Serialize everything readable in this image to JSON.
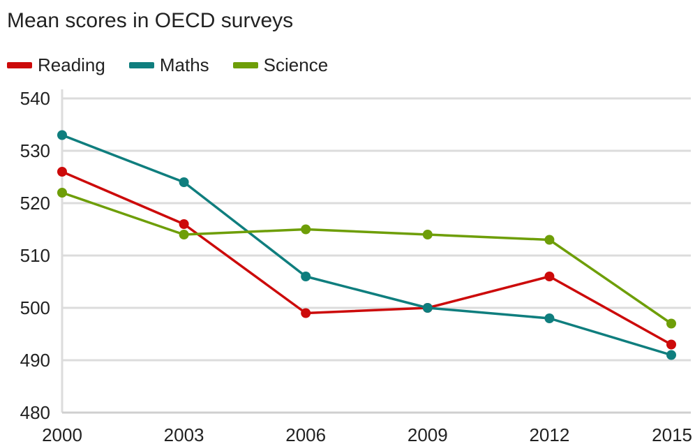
{
  "chart_data": {
    "type": "line",
    "title": "Mean scores in OECD surveys",
    "xlabel": "",
    "ylabel": "",
    "x": [
      "2000",
      "2003",
      "2006",
      "2009",
      "2012",
      "2015"
    ],
    "ylim": [
      480,
      540
    ],
    "yticks": [
      480,
      490,
      500,
      510,
      520,
      530,
      540
    ],
    "grid": "horizontal",
    "legend_position": "top-left",
    "series": [
      {
        "name": "Reading",
        "color": "#cc0a0a",
        "values": [
          526,
          516,
          499,
          500,
          506,
          493
        ]
      },
      {
        "name": "Maths",
        "color": "#0f7e7e",
        "values": [
          533,
          524,
          506,
          500,
          498,
          491
        ]
      },
      {
        "name": "Science",
        "color": "#6e9e08",
        "values": [
          522,
          514,
          515,
          514,
          513,
          497
        ]
      }
    ]
  }
}
